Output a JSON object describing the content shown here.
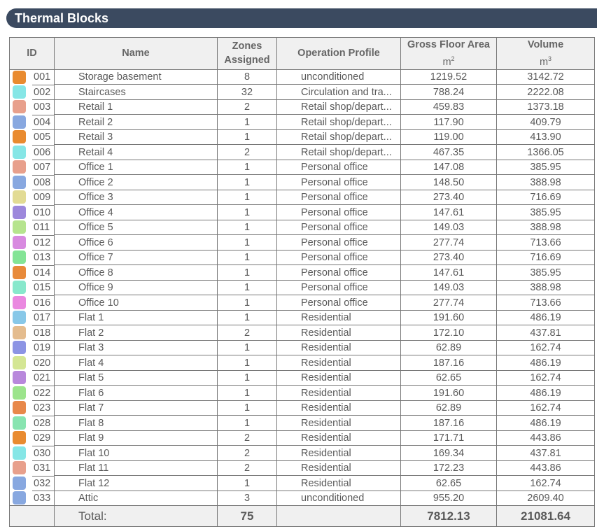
{
  "title": "Thermal Blocks",
  "columns": {
    "id": "ID",
    "name": "Name",
    "zones_1": "Zones",
    "zones_2": "Assigned",
    "profile": "Operation Profile",
    "gfa": "Gross Floor Area",
    "gfa_unit": "m",
    "gfa_exp": "2",
    "vol": "Volume",
    "vol_unit": "m",
    "vol_exp": "3"
  },
  "rows": [
    {
      "id": "001",
      "color": "#e98b30",
      "name": "Storage basement",
      "zones": "8",
      "profile": "unconditioned",
      "gfa": "1219.52",
      "vol": "3142.72"
    },
    {
      "id": "002",
      "color": "#86e6e6",
      "name": "Staircases",
      "zones": "32",
      "profile": "Circulation and tra...",
      "gfa": "788.24",
      "vol": "2222.08"
    },
    {
      "id": "003",
      "color": "#e8a08c",
      "name": "Retail 1",
      "zones": "2",
      "profile": "Retail shop/depart...",
      "gfa": "459.83",
      "vol": "1373.18"
    },
    {
      "id": "004",
      "color": "#88a8e0",
      "name": "Retail 2",
      "zones": "1",
      "profile": "Retail shop/depart...",
      "gfa": "117.90",
      "vol": "409.79"
    },
    {
      "id": "005",
      "color": "#e98b30",
      "name": "Retail 3",
      "zones": "1",
      "profile": "Retail shop/depart...",
      "gfa": "119.00",
      "vol": "413.90"
    },
    {
      "id": "006",
      "color": "#86e6e6",
      "name": "Retail 4",
      "zones": "2",
      "profile": "Retail shop/depart...",
      "gfa": "467.35",
      "vol": "1366.05"
    },
    {
      "id": "007",
      "color": "#e8a08c",
      "name": "Office 1",
      "zones": "1",
      "profile": "Personal office",
      "gfa": "147.08",
      "vol": "385.95"
    },
    {
      "id": "008",
      "color": "#88a8e0",
      "name": "Office 2",
      "zones": "1",
      "profile": "Personal office",
      "gfa": "148.50",
      "vol": "388.98"
    },
    {
      "id": "009",
      "color": "#e2db94",
      "name": "Office 3",
      "zones": "1",
      "profile": "Personal office",
      "gfa": "273.40",
      "vol": "716.69"
    },
    {
      "id": "010",
      "color": "#9d88dc",
      "name": "Office 4",
      "zones": "1",
      "profile": "Personal office",
      "gfa": "147.61",
      "vol": "385.95"
    },
    {
      "id": "011",
      "color": "#b6e48e",
      "name": "Office 5",
      "zones": "1",
      "profile": "Personal office",
      "gfa": "149.03",
      "vol": "388.98"
    },
    {
      "id": "012",
      "color": "#d88ae0",
      "name": "Office 6",
      "zones": "1",
      "profile": "Personal office",
      "gfa": "277.74",
      "vol": "713.66"
    },
    {
      "id": "013",
      "color": "#84e496",
      "name": "Office 7",
      "zones": "1",
      "profile": "Personal office",
      "gfa": "273.40",
      "vol": "716.69"
    },
    {
      "id": "014",
      "color": "#e88a3a",
      "name": "Office 8",
      "zones": "1",
      "profile": "Personal office",
      "gfa": "147.61",
      "vol": "385.95"
    },
    {
      "id": "015",
      "color": "#88e8cc",
      "name": "Office 9",
      "zones": "1",
      "profile": "Personal office",
      "gfa": "149.03",
      "vol": "388.98"
    },
    {
      "id": "016",
      "color": "#ea88e0",
      "name": "Office 10",
      "zones": "1",
      "profile": "Personal office",
      "gfa": "277.74",
      "vol": "713.66"
    },
    {
      "id": "017",
      "color": "#88c8e8",
      "name": "Flat 1",
      "zones": "1",
      "profile": "Residential",
      "gfa": "191.60",
      "vol": "486.19"
    },
    {
      "id": "018",
      "color": "#e4bc8e",
      "name": "Flat 2",
      "zones": "2",
      "profile": "Residential",
      "gfa": "172.10",
      "vol": "437.81"
    },
    {
      "id": "019",
      "color": "#8c94e4",
      "name": "Flat 3",
      "zones": "1",
      "profile": "Residential",
      "gfa": "62.89",
      "vol": "162.74"
    },
    {
      "id": "020",
      "color": "#d4e694",
      "name": "Flat 4",
      "zones": "1",
      "profile": "Residential",
      "gfa": "187.16",
      "vol": "486.19"
    },
    {
      "id": "021",
      "color": "#b888dc",
      "name": "Flat 5",
      "zones": "1",
      "profile": "Residential",
      "gfa": "62.65",
      "vol": "162.74"
    },
    {
      "id": "022",
      "color": "#9ce48c",
      "name": "Flat 6",
      "zones": "1",
      "profile": "Residential",
      "gfa": "191.60",
      "vol": "486.19"
    },
    {
      "id": "023",
      "color": "#e8884a",
      "name": "Flat 7",
      "zones": "1",
      "profile": "Residential",
      "gfa": "62.89",
      "vol": "162.74"
    },
    {
      "id": "028",
      "color": "#88e4b0",
      "name": "Flat 8",
      "zones": "1",
      "profile": "Residential",
      "gfa": "187.16",
      "vol": "486.19"
    },
    {
      "id": "029",
      "color": "#e98b30",
      "name": "Flat 9",
      "zones": "2",
      "profile": "Residential",
      "gfa": "171.71",
      "vol": "443.86"
    },
    {
      "id": "030",
      "color": "#86e6e6",
      "name": "Flat 10",
      "zones": "2",
      "profile": "Residential",
      "gfa": "169.34",
      "vol": "437.81"
    },
    {
      "id": "031",
      "color": "#e8a08c",
      "name": "Flat 11",
      "zones": "2",
      "profile": "Residential",
      "gfa": "172.23",
      "vol": "443.86"
    },
    {
      "id": "032",
      "color": "#88a8e0",
      "name": "Flat 12",
      "zones": "1",
      "profile": "Residential",
      "gfa": "62.65",
      "vol": "162.74"
    },
    {
      "id": "033",
      "color": "#88a8e0",
      "name": "Attic",
      "zones": "3",
      "profile": "unconditioned",
      "gfa": "955.20",
      "vol": "2609.40"
    }
  ],
  "total": {
    "label": "Total:",
    "zones": "75",
    "gfa": "7812.13",
    "vol": "21081.64"
  }
}
